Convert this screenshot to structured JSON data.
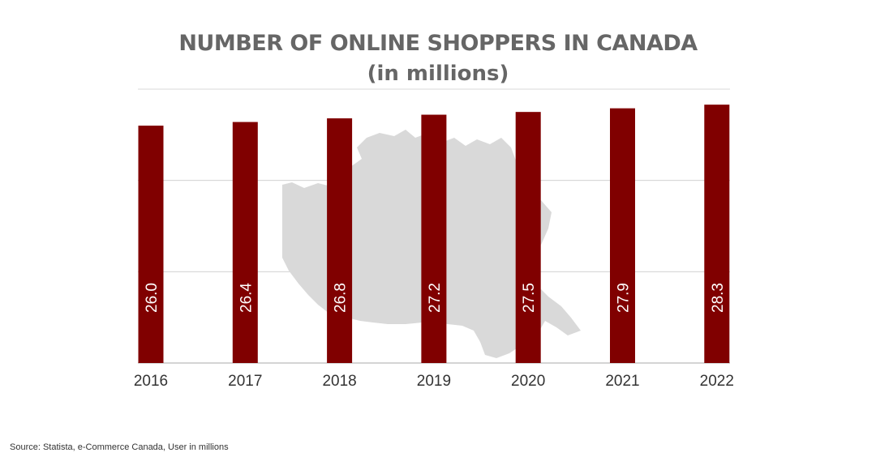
{
  "chart_data": {
    "type": "bar",
    "title": "NUMBER OF ONLINE SHOPPERS IN CANADA",
    "subtitle": "(in millions)",
    "categories": [
      "2016",
      "2017",
      "2018",
      "2019",
      "2020",
      "2021",
      "2022"
    ],
    "values": [
      26.0,
      26.4,
      26.8,
      27.2,
      27.5,
      27.9,
      28.3
    ],
    "value_labels": [
      "26.0",
      "26.4",
      "26.8",
      "27.2",
      "27.5",
      "27.9",
      "28.3"
    ],
    "xlabel": "",
    "ylabel": "",
    "ylim": [
      0,
      30
    ],
    "grid": true,
    "bar_color": "#800000",
    "label_color": "#ffffff",
    "background_graphic": "map-of-canada"
  },
  "footer": {
    "source": "Source: Statista, e-Commerce Canada, User in millions"
  }
}
